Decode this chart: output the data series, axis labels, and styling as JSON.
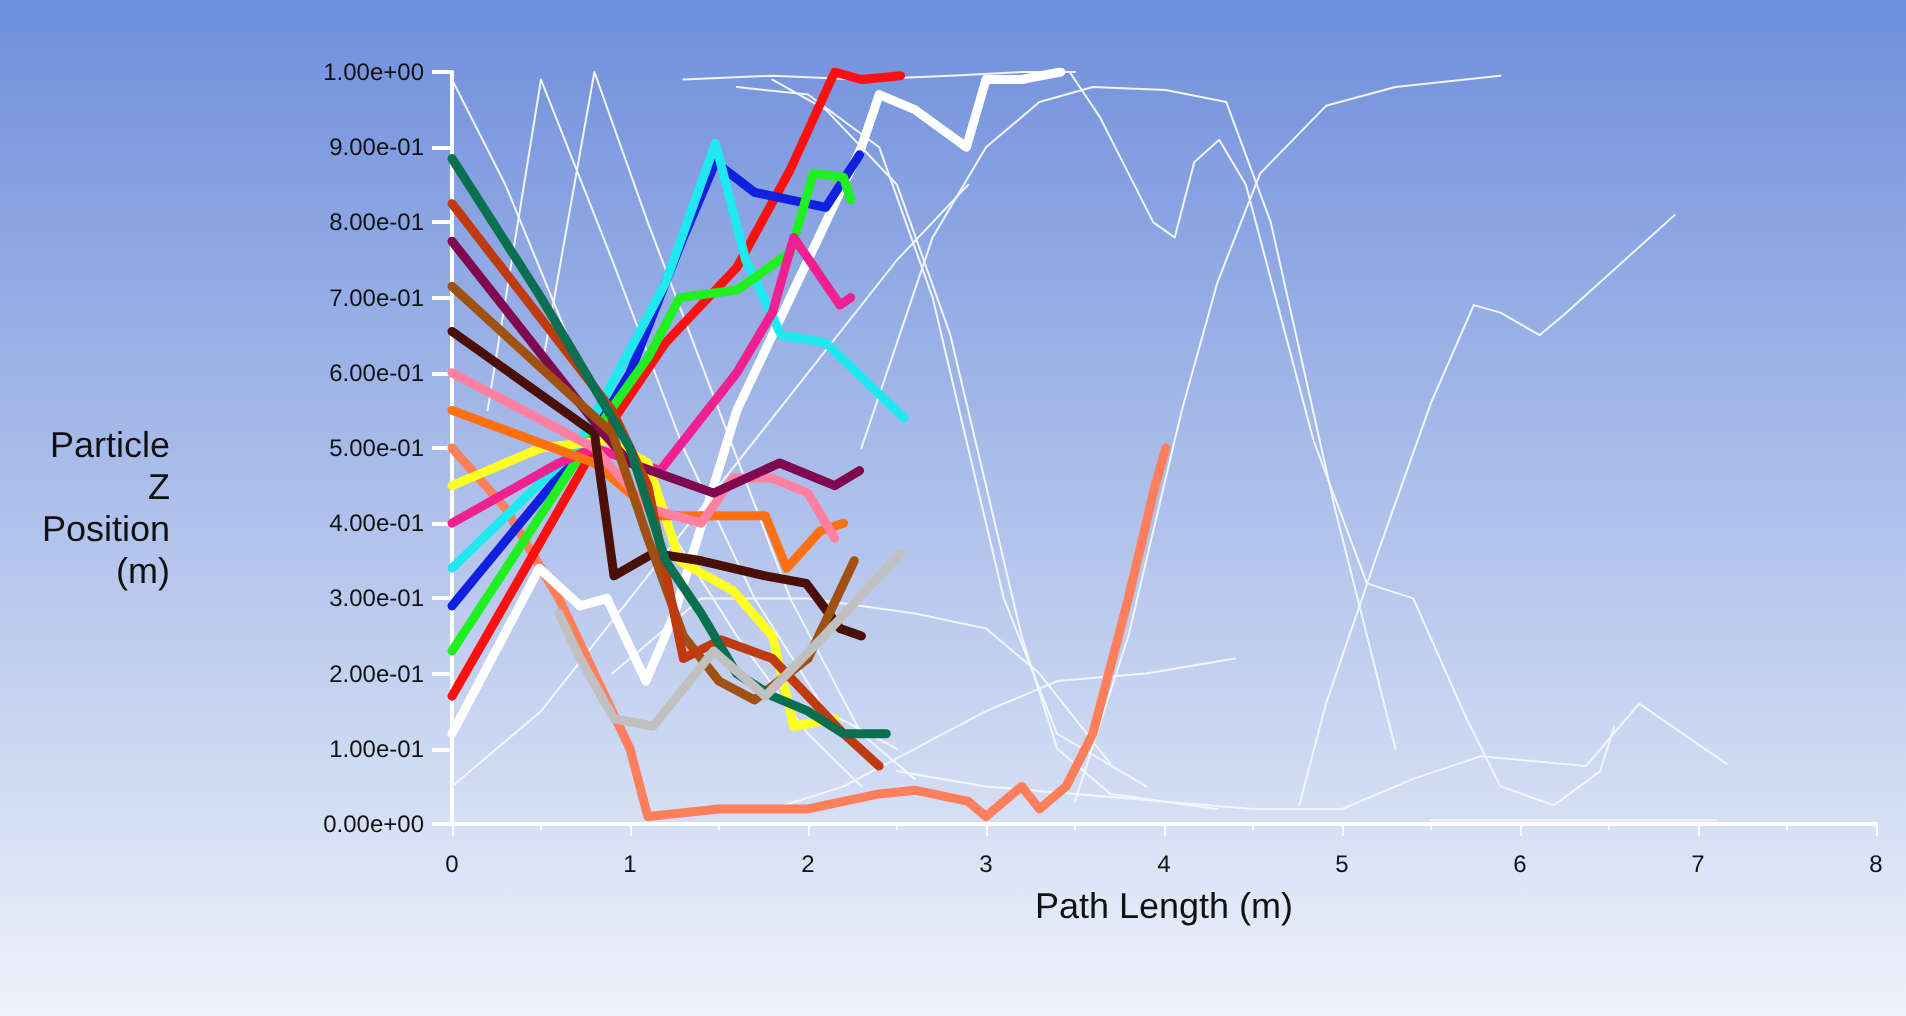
{
  "chart_data": {
    "type": "line",
    "xlabel": "Path Length (m)",
    "ylabel": "Particle Z Position (m)",
    "xlim": [
      0,
      8
    ],
    "xticks": [
      0,
      1,
      2,
      3,
      4,
      5,
      6,
      7,
      8
    ],
    "ylim": [
      0,
      1
    ],
    "yticks": [
      {
        "value": 0,
        "label": "0.00e+00"
      },
      {
        "value": 0.1,
        "label": "1.00e-01"
      },
      {
        "value": 0.2,
        "label": "2.00e-01"
      },
      {
        "value": 0.3,
        "label": "3.00e-01"
      },
      {
        "value": 0.4,
        "label": "4.00e-01"
      },
      {
        "value": 0.5,
        "label": "5.00e-01"
      },
      {
        "value": 0.6,
        "label": "6.00e-01"
      },
      {
        "value": 0.7,
        "label": "7.00e-01"
      },
      {
        "value": 0.8,
        "label": "8.00e-01"
      },
      {
        "value": 0.9,
        "label": "9.00e-01"
      },
      {
        "value": 1,
        "label": "1.00e+00"
      }
    ],
    "grid": false,
    "marker": "none",
    "line_style": "solid",
    "series": [
      {
        "color": "#f2f5fc",
        "x": [
          0,
          0.3,
          0.7,
          1.2,
          1.6,
          2.0,
          2.3
        ],
        "values": [
          0.99,
          0.85,
          0.62,
          0.4,
          0.25,
          0.12,
          0.05
        ]
      },
      {
        "color": "#f2f5fc",
        "x": [
          0.5,
          0.8,
          1.1,
          1.5,
          1.9,
          2.3,
          2.6
        ],
        "values": [
          0.6,
          1.0,
          0.8,
          0.55,
          0.3,
          0.12,
          0.06
        ]
      },
      {
        "color": "#f2f5fc",
        "x": [
          0.2,
          0.5,
          0.9,
          1.3,
          1.7,
          2.1,
          2.5
        ],
        "values": [
          0.55,
          0.99,
          0.75,
          0.5,
          0.3,
          0.15,
          0.1
        ]
      },
      {
        "color": "#f2f5fc",
        "x": [
          1.3,
          1.8,
          2.3,
          2.8,
          3.2,
          3.5
        ],
        "values": [
          0.99,
          0.995,
          0.99,
          0.995,
          1.0,
          1.0
        ]
      },
      {
        "color": "#f2f5fc",
        "x": [
          3.47,
          3.64,
          3.94,
          4.06,
          4.17,
          4.31,
          4.46,
          4.84,
          5.14,
          5.4,
          5.7,
          5.89,
          6.19,
          6.45,
          6.53
        ],
        "values": [
          1.0,
          0.94,
          0.8,
          0.78,
          0.88,
          0.91,
          0.85,
          0.51,
          0.32,
          0.3,
          0.14,
          0.05,
          0.025,
          0.07,
          0.13
        ]
      },
      {
        "color": "#f2f5fc",
        "x": [
          4.76,
          4.91,
          5.2,
          5.5,
          5.74,
          5.89,
          6.11,
          6.26,
          6.87
        ],
        "values": [
          0.025,
          0.16,
          0.36,
          0.56,
          0.69,
          0.68,
          0.65,
          0.68,
          0.81
        ]
      },
      {
        "color": "#f2f5fc",
        "x": [
          3.5,
          3.8,
          4.1,
          4.3,
          4.54,
          4.91,
          5.3,
          5.89
        ],
        "values": [
          0.03,
          0.25,
          0.55,
          0.72,
          0.865,
          0.955,
          0.98,
          0.995
        ]
      },
      {
        "color": "#f2f5fc",
        "x": [
          2.3,
          2.7,
          3.0,
          3.3,
          3.6,
          4.01,
          4.35,
          4.6,
          4.96,
          5.3
        ],
        "values": [
          0.5,
          0.78,
          0.9,
          0.96,
          0.98,
          0.976,
          0.96,
          0.8,
          0.42,
          0.1
        ]
      },
      {
        "color": "#f2f5fc",
        "x": [
          2.5,
          3.0,
          3.5,
          4.0,
          4.5,
          5.0,
          5.4,
          5.78,
          6.37,
          6.67,
          7.16
        ],
        "values": [
          0.07,
          0.05,
          0.04,
          0.03,
          0.02,
          0.02,
          0.06,
          0.09,
          0.077,
          0.16,
          0.08
        ]
      },
      {
        "color": "#f2f5fc",
        "x": [
          5.5,
          6.0,
          6.5,
          7.1
        ],
        "values": [
          0.005,
          0.005,
          0.005,
          0.005
        ]
      },
      {
        "color": "#f2f5fc",
        "x": [
          1.8,
          2.1,
          2.5,
          2.8,
          3.0,
          3.2,
          3.4,
          3.7,
          4.3
        ],
        "values": [
          0.99,
          0.95,
          0.85,
          0.65,
          0.45,
          0.25,
          0.1,
          0.04,
          0.02
        ]
      },
      {
        "color": "#f2f5fc",
        "x": [
          1.6,
          2.0,
          2.4,
          2.7,
          2.9,
          3.1,
          3.4,
          3.9
        ],
        "values": [
          0.98,
          0.97,
          0.9,
          0.7,
          0.5,
          0.3,
          0.12,
          0.05
        ]
      },
      {
        "color": "#f2f5fc",
        "x": [
          0.9,
          1.4,
          2.0,
          2.6,
          3.0,
          3.3,
          3.7
        ],
        "values": [
          0.2,
          0.3,
          0.3,
          0.28,
          0.26,
          0.2,
          0.08
        ]
      },
      {
        "color": "#f2f5fc",
        "x": [
          0,
          0.5,
          1.0,
          1.5,
          2.0,
          2.5,
          2.9
        ],
        "values": [
          0.05,
          0.15,
          0.3,
          0.45,
          0.6,
          0.75,
          0.85
        ]
      },
      {
        "color": "#f2f5fc",
        "x": [
          1.8,
          2.2,
          2.6,
          3.0,
          3.4,
          3.9,
          4.4
        ],
        "values": [
          0.02,
          0.05,
          0.1,
          0.15,
          0.19,
          0.2,
          0.22
        ]
      },
      {
        "color": "#ff7f5c",
        "x": [
          0,
          0.3,
          0.6,
          0.8,
          1.0,
          1.1,
          1.5,
          2.0,
          2.4,
          2.6,
          2.9,
          3.0,
          3.2,
          3.3,
          3.45,
          3.6,
          3.8,
          3.95,
          4.01
        ],
        "values": [
          0.5,
          0.42,
          0.3,
          0.2,
          0.1,
          0.01,
          0.02,
          0.02,
          0.04,
          0.045,
          0.03,
          0.01,
          0.05,
          0.02,
          0.05,
          0.12,
          0.3,
          0.45,
          0.5
        ]
      },
      {
        "color": "#ffffff",
        "x": [
          0,
          0.49,
          0.72,
          0.87,
          1.09,
          1.25,
          1.6,
          2.0,
          2.3,
          2.4,
          2.6,
          2.89,
          3.0,
          3.2,
          3.42
        ],
        "values": [
          0.12,
          0.34,
          0.29,
          0.3,
          0.19,
          0.28,
          0.55,
          0.75,
          0.9,
          0.97,
          0.95,
          0.9,
          0.99,
          0.99,
          1.0
        ]
      },
      {
        "color": "#ff1010",
        "x": [
          0,
          0.8,
          1.2,
          1.6,
          1.9,
          2.15,
          2.3,
          2.52
        ],
        "values": [
          0.17,
          0.5,
          0.64,
          0.74,
          0.87,
          1.0,
          0.99,
          0.995
        ]
      },
      {
        "color": "#1020e0",
        "x": [
          0,
          0.8,
          1.0,
          1.3,
          1.48,
          1.7,
          1.9,
          2.1,
          2.29
        ],
        "values": [
          0.29,
          0.52,
          0.6,
          0.78,
          0.88,
          0.84,
          0.83,
          0.82,
          0.89
        ]
      },
      {
        "color": "#20e8f0",
        "x": [
          0,
          0.7,
          1.0,
          1.2,
          1.48,
          1.65,
          1.85,
          2.1,
          2.54
        ],
        "values": [
          0.34,
          0.5,
          0.63,
          0.72,
          0.905,
          0.75,
          0.65,
          0.64,
          0.54
        ]
      },
      {
        "color": "#20f020",
        "x": [
          0,
          0.8,
          1.1,
          1.28,
          1.6,
          1.9,
          2.03,
          2.2,
          2.24
        ],
        "values": [
          0.23,
          0.52,
          0.62,
          0.7,
          0.71,
          0.76,
          0.865,
          0.86,
          0.83
        ]
      },
      {
        "color": "#f02090",
        "x": [
          0,
          0.6,
          0.8,
          1.17,
          1.6,
          1.8,
          1.92,
          2.18,
          2.24
        ],
        "values": [
          0.4,
          0.48,
          0.5,
          0.47,
          0.6,
          0.68,
          0.78,
          0.69,
          0.7
        ]
      },
      {
        "color": "#ffff20",
        "x": [
          0,
          0.5,
          0.87,
          1.1,
          1.28,
          1.58,
          1.8,
          1.92,
          2.15
        ],
        "values": [
          0.45,
          0.5,
          0.51,
          0.48,
          0.35,
          0.31,
          0.25,
          0.13,
          0.14
        ]
      },
      {
        "color": "#ff7010",
        "x": [
          0,
          0.8,
          1.0,
          1.17,
          1.5,
          1.76,
          1.88,
          2.07,
          2.2
        ],
        "values": [
          0.55,
          0.48,
          0.44,
          0.41,
          0.41,
          0.41,
          0.34,
          0.39,
          0.4
        ]
      },
      {
        "color": "#ff80a0",
        "x": [
          0,
          0.8,
          1.1,
          1.4,
          1.58,
          1.8,
          2.0,
          2.15
        ],
        "values": [
          0.6,
          0.5,
          0.42,
          0.4,
          0.46,
          0.46,
          0.44,
          0.38
        ]
      },
      {
        "color": "#4a1008",
        "x": [
          0,
          0.8,
          0.91,
          1.13,
          1.4,
          1.76,
          1.99,
          2.18,
          2.3
        ],
        "values": [
          0.655,
          0.52,
          0.33,
          0.36,
          0.35,
          0.33,
          0.32,
          0.26,
          0.25
        ]
      },
      {
        "color": "#800850",
        "x": [
          0,
          0.85,
          1.0,
          1.47,
          1.84,
          2.15,
          2.29
        ],
        "values": [
          0.775,
          0.52,
          0.48,
          0.44,
          0.48,
          0.45,
          0.47
        ]
      },
      {
        "color": "#a05010",
        "x": [
          0,
          0.9,
          1.1,
          1.3,
          1.5,
          1.7,
          2.0,
          2.26
        ],
        "values": [
          0.715,
          0.52,
          0.38,
          0.25,
          0.19,
          0.165,
          0.22,
          0.35
        ]
      },
      {
        "color": "#c03a10",
        "x": [
          0,
          0.9,
          1.1,
          1.3,
          1.51,
          1.8,
          2.0,
          2.2,
          2.4
        ],
        "values": [
          0.825,
          0.55,
          0.45,
          0.22,
          0.245,
          0.22,
          0.17,
          0.12,
          0.077
        ]
      },
      {
        "color": "#0a7050",
        "x": [
          0,
          0.5,
          0.8,
          1.0,
          1.2,
          1.4,
          1.6,
          1.8,
          2.0,
          2.2,
          2.44
        ],
        "values": [
          0.885,
          0.7,
          0.58,
          0.5,
          0.35,
          0.28,
          0.2,
          0.17,
          0.15,
          0.12,
          0.12
        ]
      },
      {
        "color": "#c0c0c0",
        "x": [
          0.6,
          0.72,
          0.91,
          1.13,
          1.47,
          1.76,
          2.07,
          2.52
        ],
        "values": [
          0.28,
          0.22,
          0.14,
          0.13,
          0.23,
          0.17,
          0.245,
          0.36
        ]
      }
    ]
  }
}
